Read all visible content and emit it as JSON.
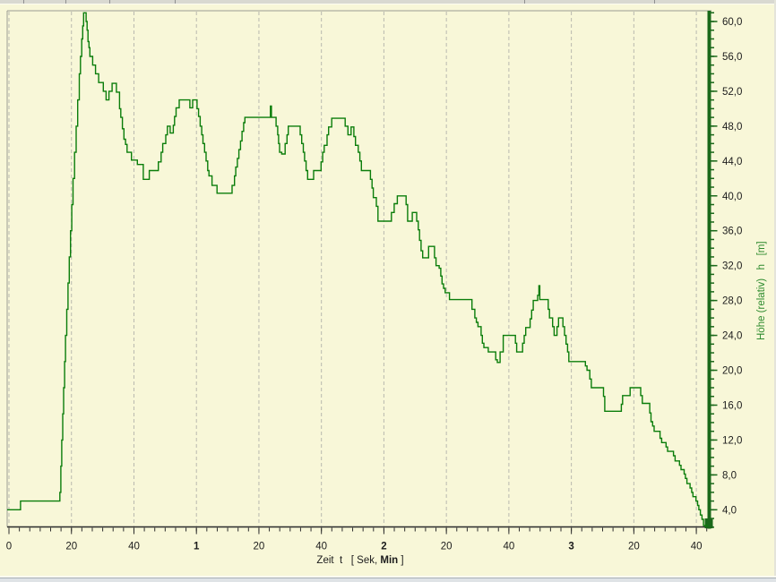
{
  "window": {
    "background_color": "#f8f7d8",
    "top_ruler_tick_positions": [
      26,
      73,
      122,
      195,
      585,
      730
    ]
  },
  "colors": {
    "background": "#f8f7d8",
    "curve": "#0a7d0a",
    "y_axis": "#1a691a",
    "y_axis_title": "#2e8b2e",
    "x_axis": "#2b2b2b",
    "grid": "#b9b9af",
    "frame": "#9c9c94",
    "tick_label": "#1c1c1c",
    "top_strip_bg": "#d9d9d1",
    "top_strip_tick": "#8f8f8f",
    "bottom_strip_line": "#a8aeb6"
  },
  "chart_data": {
    "type": "line",
    "line_style": "step-after",
    "title": "",
    "xlabel_prefix": "Zeit  t   [ Sek, ",
    "xlabel_bold": "Min",
    "xlabel_suffix": " ]",
    "ylabel": "Höhe (relativ)   h   [m]",
    "x_unit": "seconds",
    "xlim": [
      0,
      225
    ],
    "ylim": [
      2,
      62
    ],
    "grid": "vertical-dashed",
    "legend": "none",
    "x_minor_tick_step": 3.3333,
    "y_minor_tick_step": 1,
    "x_ticks": [
      {
        "t": 0,
        "label": "0",
        "bold": false
      },
      {
        "t": 20,
        "label": "20",
        "bold": false
      },
      {
        "t": 40,
        "label": "40",
        "bold": false
      },
      {
        "t": 60,
        "label": "1",
        "bold": true
      },
      {
        "t": 80,
        "label": "20",
        "bold": false
      },
      {
        "t": 100,
        "label": "40",
        "bold": false
      },
      {
        "t": 120,
        "label": "2",
        "bold": true
      },
      {
        "t": 140,
        "label": "20",
        "bold": false
      },
      {
        "t": 160,
        "label": "40",
        "bold": false
      },
      {
        "t": 180,
        "label": "3",
        "bold": true
      },
      {
        "t": 200,
        "label": "20",
        "bold": false
      },
      {
        "t": 220,
        "label": "40",
        "bold": false
      }
    ],
    "y_ticks": [
      {
        "v": 60,
        "label": "60,0"
      },
      {
        "v": 56,
        "label": "56,0"
      },
      {
        "v": 52,
        "label": "52,0"
      },
      {
        "v": 48,
        "label": "48,0"
      },
      {
        "v": 44,
        "label": "44,0"
      },
      {
        "v": 40,
        "label": "40,0"
      },
      {
        "v": 36,
        "label": "36,0"
      },
      {
        "v": 32,
        "label": "32,0"
      },
      {
        "v": 28,
        "label": "28,0"
      },
      {
        "v": 24,
        "label": "24,0"
      },
      {
        "v": 20,
        "label": "20,0"
      },
      {
        "v": 16,
        "label": "16,0"
      },
      {
        "v": 12,
        "label": "12,0"
      },
      {
        "v": 8,
        "label": "8,0"
      },
      {
        "v": 4,
        "label": "4,0"
      }
    ],
    "steps": [
      [
        0,
        4
      ],
      [
        3.7,
        5
      ],
      [
        16.3,
        6
      ],
      [
        16.6,
        9
      ],
      [
        16.9,
        12
      ],
      [
        17.2,
        15
      ],
      [
        17.5,
        18
      ],
      [
        17.8,
        21
      ],
      [
        18.1,
        24
      ],
      [
        18.5,
        27
      ],
      [
        18.9,
        30
      ],
      [
        19.3,
        33
      ],
      [
        19.7,
        36
      ],
      [
        20.1,
        39
      ],
      [
        20.5,
        42
      ],
      [
        21.0,
        45
      ],
      [
        21.5,
        48
      ],
      [
        22.0,
        51
      ],
      [
        22.5,
        54
      ],
      [
        22.9,
        56
      ],
      [
        23.3,
        58
      ],
      [
        23.6,
        59.5
      ],
      [
        23.9,
        61
      ],
      [
        24.7,
        60
      ],
      [
        25.0,
        59
      ],
      [
        25.3,
        57.7
      ],
      [
        25.6,
        57
      ],
      [
        25.9,
        56
      ],
      [
        26.8,
        55
      ],
      [
        27.7,
        54
      ],
      [
        28.7,
        53
      ],
      [
        30.2,
        52
      ],
      [
        31.1,
        51
      ],
      [
        32.0,
        52
      ],
      [
        33.0,
        52.9
      ],
      [
        34.4,
        51.9
      ],
      [
        35.4,
        50
      ],
      [
        35.8,
        49
      ],
      [
        36.3,
        47.7
      ],
      [
        36.8,
        46.5
      ],
      [
        37.3,
        45.9
      ],
      [
        37.8,
        45
      ],
      [
        39.2,
        44.1
      ],
      [
        41.1,
        43.6
      ],
      [
        43.0,
        41.9
      ],
      [
        44.9,
        42.9
      ],
      [
        47.8,
        43.9
      ],
      [
        48.7,
        45
      ],
      [
        49.2,
        46
      ],
      [
        50.2,
        47
      ],
      [
        50.7,
        48
      ],
      [
        51.6,
        47.2
      ],
      [
        52.6,
        48.1
      ],
      [
        53.0,
        49.1
      ],
      [
        53.5,
        50.1
      ],
      [
        54.5,
        51
      ],
      [
        57.9,
        50.1
      ],
      [
        58.8,
        51
      ],
      [
        60.2,
        50
      ],
      [
        60.7,
        49.1
      ],
      [
        61.2,
        48
      ],
      [
        61.7,
        47
      ],
      [
        62.1,
        46
      ],
      [
        62.6,
        45
      ],
      [
        63.1,
        44
      ],
      [
        63.6,
        42.9
      ],
      [
        64.0,
        42.3
      ],
      [
        65.0,
        41.2
      ],
      [
        66.6,
        40.3
      ],
      [
        71.4,
        41.2
      ],
      [
        72.2,
        42.3
      ],
      [
        72.6,
        43.3
      ],
      [
        73.1,
        44.3
      ],
      [
        73.6,
        45.3
      ],
      [
        74.1,
        46.3
      ],
      [
        74.6,
        47.4
      ],
      [
        75.1,
        48.4
      ],
      [
        75.5,
        49
      ],
      [
        83.7,
        50.3
      ],
      [
        84.0,
        49
      ],
      [
        85.5,
        48
      ],
      [
        86.0,
        47
      ],
      [
        86.3,
        46
      ],
      [
        86.6,
        45
      ],
      [
        87.3,
        44.8
      ],
      [
        88.4,
        46
      ],
      [
        89.0,
        47
      ],
      [
        89.4,
        48
      ],
      [
        93.2,
        47
      ],
      [
        93.7,
        46
      ],
      [
        94.2,
        45
      ],
      [
        94.6,
        44
      ],
      [
        95.1,
        42.9
      ],
      [
        95.6,
        41.9
      ],
      [
        97.5,
        42.9
      ],
      [
        99.9,
        43.9
      ],
      [
        100.4,
        45
      ],
      [
        100.9,
        45.8
      ],
      [
        101.8,
        47
      ],
      [
        102.3,
        47.9
      ],
      [
        103.3,
        48.9
      ],
      [
        107.6,
        48
      ],
      [
        108.5,
        47
      ],
      [
        109.5,
        47.9
      ],
      [
        110.4,
        46.8
      ],
      [
        110.9,
        45.8
      ],
      [
        111.8,
        45
      ],
      [
        112.3,
        44
      ],
      [
        112.8,
        42.9
      ],
      [
        115.7,
        41.9
      ],
      [
        116.2,
        40.9
      ],
      [
        116.6,
        39.8
      ],
      [
        117.6,
        38.8
      ],
      [
        118.1,
        37.1
      ],
      [
        122.4,
        38.1
      ],
      [
        123.3,
        39.1
      ],
      [
        124.3,
        40
      ],
      [
        127.1,
        39
      ],
      [
        127.6,
        37.1
      ],
      [
        129.1,
        38.1
      ],
      [
        130.5,
        37.1
      ],
      [
        131.0,
        36.1
      ],
      [
        131.4,
        34.9
      ],
      [
        131.9,
        33.7
      ],
      [
        132.4,
        32.9
      ],
      [
        134.3,
        34.2
      ],
      [
        136.2,
        32.9
      ],
      [
        136.7,
        32
      ],
      [
        137.7,
        31.7
      ],
      [
        138.2,
        30.8
      ],
      [
        138.6,
        29.9
      ],
      [
        139.1,
        29.4
      ],
      [
        139.6,
        28.9
      ],
      [
        141.0,
        28.1
      ],
      [
        148.2,
        27
      ],
      [
        149.1,
        26
      ],
      [
        149.6,
        25.5
      ],
      [
        150.1,
        25
      ],
      [
        151.1,
        24
      ],
      [
        151.5,
        23.1
      ],
      [
        152.0,
        22.6
      ],
      [
        153.4,
        22.1
      ],
      [
        155.8,
        21.2
      ],
      [
        156.3,
        20.9
      ],
      [
        157.2,
        22.1
      ],
      [
        158.2,
        24
      ],
      [
        162.1,
        23.1
      ],
      [
        162.5,
        22.1
      ],
      [
        164.4,
        23.1
      ],
      [
        164.9,
        24
      ],
      [
        165.4,
        24.9
      ],
      [
        166.8,
        25.9
      ],
      [
        167.3,
        26.9
      ],
      [
        167.8,
        28
      ],
      [
        169.2,
        28.6
      ],
      [
        169.6,
        29.7
      ],
      [
        169.9,
        28.1
      ],
      [
        172.6,
        27
      ],
      [
        173.0,
        26
      ],
      [
        174.0,
        25
      ],
      [
        174.5,
        24
      ],
      [
        175.4,
        25
      ],
      [
        175.9,
        26
      ],
      [
        177.3,
        25
      ],
      [
        177.8,
        24
      ],
      [
        178.3,
        23
      ],
      [
        178.8,
        22.1
      ],
      [
        179.2,
        21
      ],
      [
        184.5,
        20.5
      ],
      [
        185.0,
        20
      ],
      [
        185.9,
        19
      ],
      [
        186.4,
        18
      ],
      [
        190.3,
        17
      ],
      [
        190.7,
        15.3
      ],
      [
        196.0,
        16.1
      ],
      [
        196.4,
        17.1
      ],
      [
        198.8,
        18
      ],
      [
        202.2,
        17.1
      ],
      [
        202.7,
        16.2
      ],
      [
        205.1,
        15.1
      ],
      [
        205.5,
        14.1
      ],
      [
        206.0,
        13.6
      ],
      [
        206.5,
        13
      ],
      [
        208.4,
        12.2
      ],
      [
        208.9,
        11.7
      ],
      [
        210.3,
        11.2
      ],
      [
        210.8,
        10.7
      ],
      [
        212.7,
        10.2
      ],
      [
        213.2,
        9.6
      ],
      [
        214.6,
        9.1
      ],
      [
        215.1,
        8.6
      ],
      [
        216.1,
        8.1
      ],
      [
        216.5,
        7.6
      ],
      [
        217.0,
        7
      ],
      [
        218.0,
        6.5
      ],
      [
        218.5,
        6
      ],
      [
        218.9,
        5.5
      ],
      [
        219.9,
        5
      ],
      [
        220.4,
        4.5
      ],
      [
        220.8,
        4
      ],
      [
        221.3,
        3.4
      ],
      [
        221.8,
        2.9
      ],
      [
        222.3,
        2.2
      ],
      [
        225.0,
        2.2
      ]
    ]
  }
}
